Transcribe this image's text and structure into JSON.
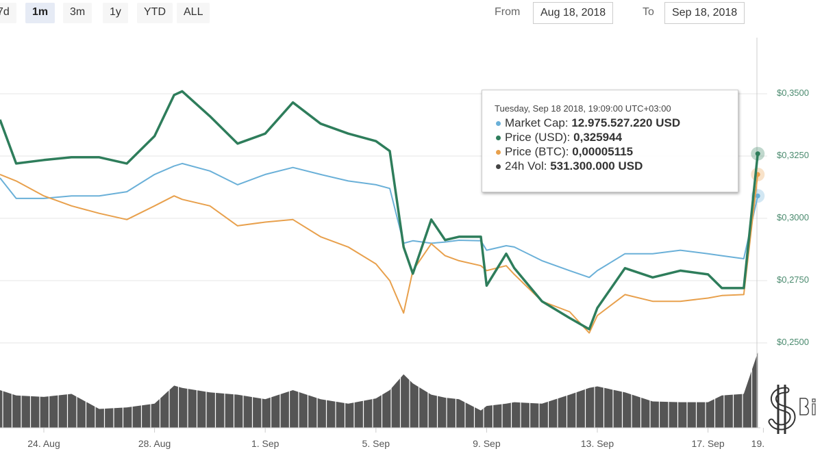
{
  "range_buttons": [
    {
      "label": "7d"
    },
    {
      "label": "1m",
      "active": true
    },
    {
      "label": "3m"
    },
    {
      "label": "1y"
    },
    {
      "label": "YTD"
    },
    {
      "label": "ALL"
    }
  ],
  "date_range": {
    "from_label": "From",
    "from": "Aug 18, 2018",
    "to_label": "To",
    "to": "Sep 18, 2018"
  },
  "tooltip": {
    "header": "Tuesday, Sep 18 2018, 19:09:00 UTC+03:00",
    "rows": [
      {
        "label": "Market Cap:",
        "value": "12.975.527.220 USD",
        "color": "#6ab0d8"
      },
      {
        "label": "Price (USD):",
        "value": "0,325944",
        "color": "#2e7d5b"
      },
      {
        "label": "Price (BTC):",
        "value": "0,00005115",
        "color": "#e8a04c"
      },
      {
        "label": "24h Vol:",
        "value": "531.300.000 USD",
        "color": "#444444"
      }
    ]
  },
  "logo_text": "Bi",
  "chart_data": {
    "type": "line",
    "ylim": [
      0.25,
      0.35
    ],
    "yticks": [
      "$0,2500",
      "$0,2750",
      "$0,3000",
      "$0,3250",
      "$0,3500"
    ],
    "ytick_values": [
      0.25,
      0.275,
      0.3,
      0.325,
      0.35
    ],
    "xticks": [
      {
        "label": "24. Aug",
        "date": "2018-08-24"
      },
      {
        "label": "28. Aug",
        "date": "2018-08-28"
      },
      {
        "label": "1. Sep",
        "date": "2018-09-01"
      },
      {
        "label": "5. Sep",
        "date": "2018-09-05"
      },
      {
        "label": "9. Sep",
        "date": "2018-09-09"
      },
      {
        "label": "13. Sep",
        "date": "2018-09-13"
      },
      {
        "label": "17. Sep",
        "date": "2018-09-17"
      },
      {
        "label": "19.",
        "date": "2018-09-19"
      }
    ],
    "grid": true,
    "x": [
      "2018-08-22T10:00",
      "2018-08-23",
      "2018-08-24",
      "2018-08-25",
      "2018-08-26",
      "2018-08-27",
      "2018-08-28",
      "2018-08-28T17:00",
      "2018-08-29",
      "2018-08-30",
      "2018-08-31",
      "2018-09-01",
      "2018-09-02",
      "2018-09-03",
      "2018-09-04",
      "2018-09-05",
      "2018-09-05T12:00",
      "2018-09-06",
      "2018-09-06T08:00",
      "2018-09-07",
      "2018-09-07T12:00",
      "2018-09-08",
      "2018-09-08T19:00",
      "2018-09-09",
      "2018-09-09T17:00",
      "2018-09-10",
      "2018-09-11",
      "2018-09-12",
      "2018-09-12T17:00",
      "2018-09-13",
      "2018-09-14",
      "2018-09-15",
      "2018-09-16",
      "2018-09-17",
      "2018-09-17T12:00",
      "2018-09-18T07:00",
      "2018-09-18T19:09"
    ],
    "series": [
      {
        "name": "Market Cap",
        "color": "#6ab0d8",
        "values": [
          0.3162,
          0.308,
          0.308,
          0.309,
          0.309,
          0.3107,
          0.3176,
          0.321,
          0.322,
          0.319,
          0.3135,
          0.3176,
          0.3204,
          0.3176,
          0.315,
          0.3135,
          0.312,
          0.29,
          0.291,
          0.29,
          0.2905,
          0.2912,
          0.291,
          0.2872,
          0.289,
          0.2885,
          0.283,
          0.279,
          0.2763,
          0.279,
          0.2858,
          0.2858,
          0.2872,
          0.2858,
          0.285,
          0.2838,
          0.309
        ]
      },
      {
        "name": "Price (BTC)",
        "color": "#e8a04c",
        "values": [
          0.3176,
          0.315,
          0.309,
          0.305,
          0.302,
          0.2995,
          0.305,
          0.309,
          0.3076,
          0.305,
          0.297,
          0.2985,
          0.2995,
          0.2926,
          0.2885,
          0.2817,
          0.275,
          0.262,
          0.279,
          0.2898,
          0.285,
          0.283,
          0.281,
          0.279,
          0.281,
          0.2775,
          0.2667,
          0.2625,
          0.254,
          0.261,
          0.2694,
          0.2667,
          0.2667,
          0.268,
          0.269,
          0.2694,
          0.3176
        ]
      },
      {
        "name": "Price (USD)",
        "color": "#2e7d5b",
        "values": [
          0.3396,
          0.322,
          0.3234,
          0.3245,
          0.3245,
          0.322,
          0.333,
          0.3495,
          0.351,
          0.341,
          0.33,
          0.334,
          0.3465,
          0.338,
          0.334,
          0.331,
          0.327,
          0.2885,
          0.2778,
          0.2995,
          0.2913,
          0.2926,
          0.2926,
          0.273,
          0.2858,
          0.28,
          0.2667,
          0.26,
          0.2555,
          0.264,
          0.28,
          0.2763,
          0.279,
          0.2775,
          0.272,
          0.272,
          0.325944
        ]
      }
    ],
    "volume_relative": [
      50,
      43,
      41,
      45,
      25,
      27,
      32,
      56,
      53,
      47,
      44,
      38,
      50,
      38,
      32,
      39,
      50,
      71,
      59,
      44,
      40,
      38,
      23,
      29,
      32,
      34,
      32,
      44,
      53,
      55,
      47,
      35,
      34,
      34,
      43,
      45,
      100
    ]
  }
}
